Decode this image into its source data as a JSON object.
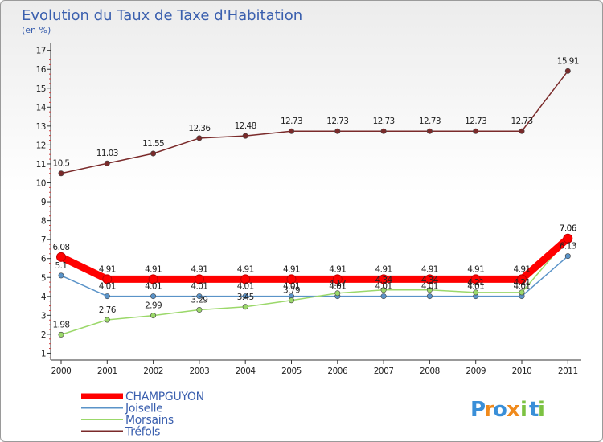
{
  "chart_data": {
    "type": "line",
    "title": "Evolution du Taux de Taxe d'Habitation",
    "subtitle": "(en %)",
    "xlabel": "",
    "ylabel": "",
    "x": [
      "2000",
      "2001",
      "2002",
      "2003",
      "2004",
      "2005",
      "2006",
      "2007",
      "2008",
      "2009",
      "2010",
      "2011"
    ],
    "ylim": [
      0,
      17
    ],
    "yticks": [
      1,
      2,
      3,
      4,
      5,
      6,
      7,
      8,
      9,
      10,
      11,
      12,
      13,
      14,
      15,
      16,
      17
    ],
    "grid": false,
    "legend_position": "bottom-left",
    "series": [
      {
        "name": "Tréfols",
        "color": "#7a2a2a",
        "values": [
          10.5,
          11.03,
          11.55,
          12.36,
          12.48,
          12.73,
          12.73,
          12.73,
          12.73,
          12.73,
          12.73,
          15.91
        ],
        "labels": [
          "10.5",
          "11.03",
          "11.55",
          "12.36",
          "12.48",
          "12.73",
          "12.73",
          "12.73",
          "12.73",
          "12.73",
          "12.73",
          "15.91"
        ]
      },
      {
        "name": "Joiselle",
        "color": "#5a93c8",
        "values": [
          5.1,
          4.01,
          4.01,
          4.01,
          4.01,
          4.01,
          4.01,
          4.01,
          4.01,
          4.01,
          4.01,
          6.13
        ],
        "labels": [
          "5.1",
          "4.01",
          "4.01",
          "4.01",
          "4.01",
          "4.01",
          "4.01",
          "4.01",
          "4.01",
          "4.01",
          "4.01",
          "6.13"
        ]
      },
      {
        "name": "Morsains",
        "color": "#9bd86a",
        "values": [
          1.98,
          2.76,
          2.99,
          3.29,
          3.45,
          3.79,
          4.17,
          4.34,
          4.34,
          4.21,
          4.21,
          7.06
        ],
        "labels": [
          "1.98",
          "2.76",
          "2.99",
          "3.29",
          "3.45",
          "3.79",
          "4.17",
          "4.34",
          "4.34",
          "4.21",
          "4.21",
          "7.06"
        ]
      },
      {
        "name": "CHAMPGUYON",
        "color": "#ff0000",
        "values": [
          6.08,
          4.91,
          4.91,
          4.91,
          4.91,
          4.91,
          4.91,
          4.91,
          4.91,
          4.91,
          4.91,
          7.06
        ],
        "labels": [
          "6.08",
          "4.91",
          "4.91",
          "4.91",
          "4.91",
          "4.91",
          "4.91",
          "4.91",
          "4.91",
          "4.91",
          "4.91",
          "7.06"
        ]
      }
    ],
    "legend": [
      "CHAMPGUYON",
      "Joiselle",
      "Morsains",
      "Tréfols"
    ]
  },
  "logo": {
    "letters": [
      "P",
      "r",
      "o",
      "x",
      "i",
      "t",
      "i"
    ],
    "colors": [
      "#3a8fd8",
      "#f08a1c",
      "#3a8fd8",
      "#f08a1c",
      "#7cc242",
      "#3a8fd8",
      "#7cc242"
    ]
  }
}
